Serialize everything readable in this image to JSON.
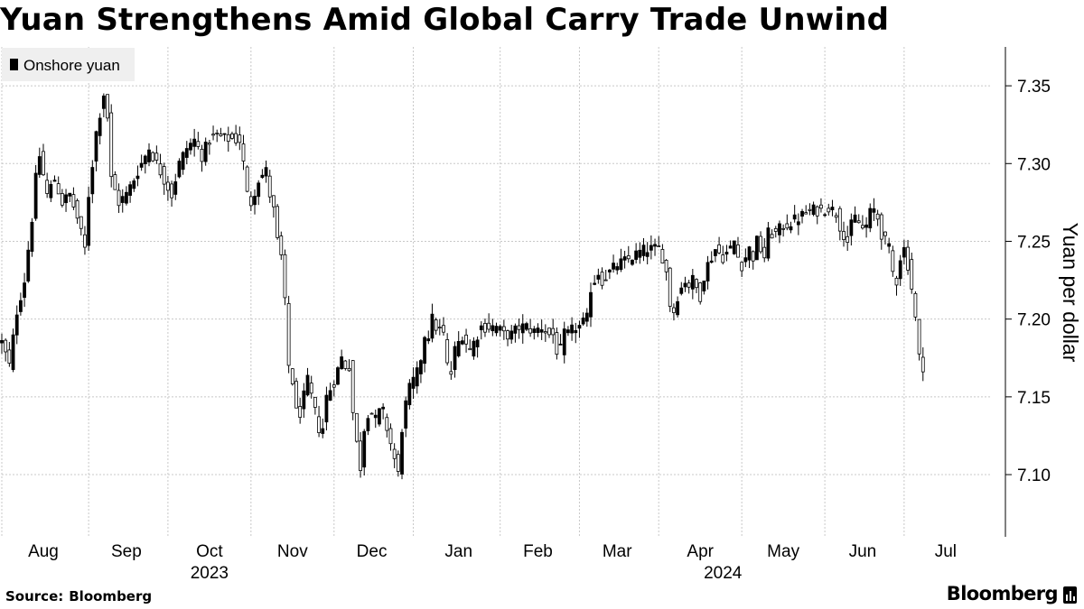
{
  "title": "Yuan Strengthens Amid Global Carry Trade Unwind",
  "source": {
    "label": "Source:",
    "value": "Bloomberg"
  },
  "brand": {
    "name": "Bloomberg",
    "logo_icon": "bloomberg-terminal-icon"
  },
  "colors": {
    "up": "#ffffff",
    "down": "#000000",
    "wick": "#000000",
    "grid": "#c8c8c8",
    "legend_bg": "#efefef"
  },
  "chart_data": {
    "type": "candlestick",
    "title": "Yuan Strengthens Amid Global Carry Trade Unwind",
    "legend": [
      {
        "name": "Onshore yuan",
        "swatch": "#000000"
      }
    ],
    "ylabel": "Yuan per dollar",
    "ylim": [
      7.06,
      7.375
    ],
    "yticks": [
      7.1,
      7.15,
      7.2,
      7.25,
      7.3,
      7.35
    ],
    "ytick_labels": [
      "7.10",
      "7.15",
      "7.20",
      "7.25",
      "7.30",
      "7.35"
    ],
    "grid": true,
    "xlim": [
      0,
      262
    ],
    "month_ticks": [
      {
        "label": "Aug",
        "idx": 0
      },
      {
        "label": "Sep",
        "idx": 23
      },
      {
        "label": "Oct",
        "idx": 44
      },
      {
        "label": "Nov",
        "idx": 66
      },
      {
        "label": "Dec",
        "idx": 88
      },
      {
        "label": "Jan",
        "idx": 109
      },
      {
        "label": "Feb",
        "idx": 132
      },
      {
        "label": "Mar",
        "idx": 153
      },
      {
        "label": "Apr",
        "idx": 174
      },
      {
        "label": "May",
        "idx": 196
      },
      {
        "label": "Jun",
        "idx": 218
      },
      {
        "label": "Jul",
        "idx": 239
      }
    ],
    "month_labels": [
      {
        "label": "Aug",
        "idx": 11
      },
      {
        "label": "Sep",
        "idx": 33
      },
      {
        "label": "Oct",
        "idx": 55
      },
      {
        "label": "Nov",
        "idx": 77
      },
      {
        "label": "Dec",
        "idx": 98
      },
      {
        "label": "Jan",
        "idx": 121
      },
      {
        "label": "Feb",
        "idx": 142
      },
      {
        "label": "Mar",
        "idx": 163
      },
      {
        "label": "Apr",
        "idx": 185
      },
      {
        "label": "May",
        "idx": 207
      },
      {
        "label": "Jun",
        "idx": 228
      },
      {
        "label": "Jul",
        "idx": 250
      }
    ],
    "year_labels": [
      {
        "label": "2023",
        "idx": 55
      },
      {
        "label": "2024",
        "idx": 191
      }
    ],
    "anchors": [
      [
        0,
        7.185
      ],
      [
        2,
        7.17
      ],
      [
        4,
        7.205
      ],
      [
        6,
        7.225
      ],
      [
        7,
        7.245
      ],
      [
        8,
        7.265
      ],
      [
        9,
        7.29
      ],
      [
        10,
        7.305
      ],
      [
        12,
        7.28
      ],
      [
        14,
        7.29
      ],
      [
        16,
        7.275
      ],
      [
        18,
        7.28
      ],
      [
        20,
        7.265
      ],
      [
        22,
        7.245
      ],
      [
        23,
        7.28
      ],
      [
        25,
        7.32
      ],
      [
        27,
        7.345
      ],
      [
        28,
        7.33
      ],
      [
        29,
        7.29
      ],
      [
        31,
        7.275
      ],
      [
        33,
        7.28
      ],
      [
        35,
        7.29
      ],
      [
        37,
        7.3
      ],
      [
        39,
        7.31
      ],
      [
        41,
        7.3
      ],
      [
        43,
        7.29
      ],
      [
        45,
        7.28
      ],
      [
        47,
        7.3
      ],
      [
        49,
        7.31
      ],
      [
        51,
        7.315
      ],
      [
        53,
        7.305
      ],
      [
        55,
        7.315
      ],
      [
        57,
        7.318
      ],
      [
        59,
        7.316
      ],
      [
        61,
        7.316
      ],
      [
        63,
        7.315
      ],
      [
        64,
        7.3
      ],
      [
        65,
        7.28
      ],
      [
        66,
        7.275
      ],
      [
        68,
        7.29
      ],
      [
        70,
        7.295
      ],
      [
        71,
        7.28
      ],
      [
        72,
        7.27
      ],
      [
        73,
        7.25
      ],
      [
        74,
        7.24
      ],
      [
        75,
        7.21
      ],
      [
        76,
        7.17
      ],
      [
        77,
        7.16
      ],
      [
        78,
        7.14
      ],
      [
        79,
        7.14
      ],
      [
        80,
        7.15
      ],
      [
        81,
        7.16
      ],
      [
        82,
        7.15
      ],
      [
        83,
        7.14
      ],
      [
        84,
        7.13
      ],
      [
        85,
        7.13
      ],
      [
        86,
        7.15
      ],
      [
        88,
        7.16
      ],
      [
        90,
        7.175
      ],
      [
        91,
        7.17
      ],
      [
        92,
        7.17
      ],
      [
        93,
        7.14
      ],
      [
        94,
        7.12
      ],
      [
        95,
        7.105
      ],
      [
        96,
        7.13
      ],
      [
        97,
        7.14
      ],
      [
        98,
        7.14
      ],
      [
        99,
        7.135
      ],
      [
        100,
        7.14
      ],
      [
        101,
        7.14
      ],
      [
        102,
        7.13
      ],
      [
        103,
        7.12
      ],
      [
        105,
        7.1
      ],
      [
        106,
        7.13
      ],
      [
        107,
        7.145
      ],
      [
        108,
        7.155
      ],
      [
        109,
        7.16
      ],
      [
        110,
        7.165
      ],
      [
        111,
        7.175
      ],
      [
        112,
        7.19
      ],
      [
        113,
        7.19
      ],
      [
        114,
        7.2
      ],
      [
        115,
        7.195
      ],
      [
        117,
        7.19
      ],
      [
        118,
        7.17
      ],
      [
        119,
        7.165
      ],
      [
        120,
        7.18
      ],
      [
        122,
        7.19
      ],
      [
        124,
        7.18
      ],
      [
        125,
        7.185
      ],
      [
        126,
        7.19
      ],
      [
        127,
        7.195
      ],
      [
        129,
        7.195
      ],
      [
        131,
        7.195
      ],
      [
        133,
        7.19
      ],
      [
        135,
        7.19
      ],
      [
        137,
        7.195
      ],
      [
        139,
        7.195
      ],
      [
        141,
        7.192
      ],
      [
        143,
        7.195
      ],
      [
        145,
        7.19
      ],
      [
        146,
        7.19
      ],
      [
        147,
        7.18
      ],
      [
        148,
        7.18
      ],
      [
        149,
        7.19
      ],
      [
        150,
        7.19
      ],
      [
        152,
        7.195
      ],
      [
        153,
        7.195
      ],
      [
        155,
        7.2
      ],
      [
        156,
        7.22
      ],
      [
        157,
        7.225
      ],
      [
        158,
        7.23
      ],
      [
        159,
        7.225
      ],
      [
        161,
        7.23
      ],
      [
        163,
        7.235
      ],
      [
        165,
        7.237
      ],
      [
        167,
        7.24
      ],
      [
        169,
        7.243
      ],
      [
        171,
        7.245
      ],
      [
        173,
        7.245
      ],
      [
        174,
        7.245
      ],
      [
        175,
        7.24
      ],
      [
        176,
        7.23
      ],
      [
        177,
        7.21
      ],
      [
        178,
        7.205
      ],
      [
        179,
        7.215
      ],
      [
        180,
        7.22
      ],
      [
        181,
        7.225
      ],
      [
        182,
        7.222
      ],
      [
        183,
        7.225
      ],
      [
        184,
        7.22
      ],
      [
        185,
        7.215
      ],
      [
        186,
        7.228
      ],
      [
        187,
        7.235
      ],
      [
        188,
        7.24
      ],
      [
        189,
        7.245
      ],
      [
        191,
        7.24
      ],
      [
        193,
        7.245
      ],
      [
        194,
        7.25
      ],
      [
        195,
        7.24
      ],
      [
        196,
        7.235
      ],
      [
        197,
        7.24
      ],
      [
        198,
        7.245
      ],
      [
        199,
        7.24
      ],
      [
        200,
        7.25
      ],
      [
        202,
        7.24
      ],
      [
        203,
        7.255
      ],
      [
        205,
        7.255
      ],
      [
        207,
        7.26
      ],
      [
        209,
        7.262
      ],
      [
        211,
        7.265
      ],
      [
        213,
        7.268
      ],
      [
        215,
        7.27
      ],
      [
        217,
        7.27
      ],
      [
        219,
        7.272
      ],
      [
        221,
        7.268
      ],
      [
        222,
        7.26
      ],
      [
        223,
        7.255
      ],
      [
        224,
        7.25
      ],
      [
        225,
        7.26
      ],
      [
        226,
        7.265
      ],
      [
        227,
        7.262
      ],
      [
        228,
        7.258
      ],
      [
        229,
        7.26
      ],
      [
        230,
        7.268
      ],
      [
        231,
        7.27
      ],
      [
        232,
        7.265
      ],
      [
        233,
        7.255
      ],
      [
        234,
        7.25
      ],
      [
        235,
        7.245
      ],
      [
        236,
        7.23
      ],
      [
        237,
        7.225
      ],
      [
        238,
        7.24
      ],
      [
        239,
        7.245
      ],
      [
        240,
        7.235
      ],
      [
        241,
        7.22
      ],
      [
        242,
        7.2
      ],
      [
        243,
        7.175
      ],
      [
        244,
        7.17
      ]
    ],
    "ohlc_generation": "candles interpolated from anchor closes with deterministic noise"
  }
}
